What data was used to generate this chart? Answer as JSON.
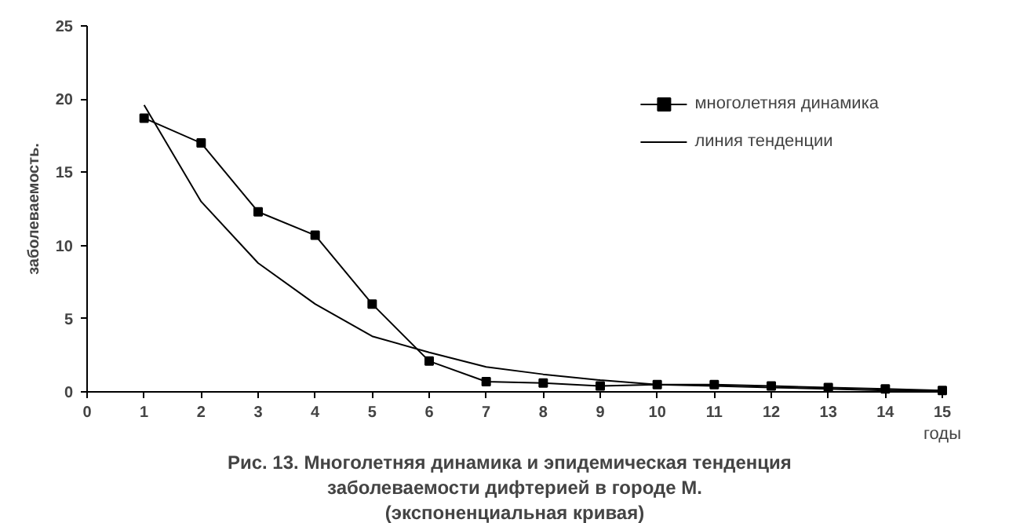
{
  "chart_data": {
    "type": "line",
    "title": "Рис. 13.  Многолетняя динамика и  эпидемическая тенденция\nзаболеваемости дифтерией в городе М.\n(экспоненциальная кривая)",
    "xlabel": "годы",
    "ylabel": "заболеваемость.",
    "x": [
      1,
      2,
      3,
      4,
      5,
      6,
      7,
      8,
      9,
      10,
      11,
      12,
      13,
      14,
      15
    ],
    "series": [
      {
        "name": "многолетняя динамика",
        "color": "#000000",
        "marker": "square",
        "values": [
          18.7,
          17.0,
          12.3,
          10.7,
          6.0,
          2.1,
          0.7,
          0.6,
          0.4,
          0.5,
          0.5,
          0.4,
          0.3,
          0.2,
          0.1
        ]
      },
      {
        "name": "линия тенденции",
        "color": "#000000",
        "marker": "none",
        "values": [
          19.6,
          13.0,
          8.8,
          6.0,
          3.8,
          2.7,
          1.7,
          1.2,
          0.8,
          0.5,
          0.4,
          0.3,
          0.2,
          0.1,
          0.1
        ]
      }
    ],
    "xlim": [
      0,
      15
    ],
    "xticks": [
      0,
      1,
      2,
      3,
      4,
      5,
      6,
      7,
      8,
      9,
      10,
      11,
      12,
      13,
      14,
      15
    ],
    "ylim": [
      0,
      25
    ],
    "yticks": [
      0,
      5,
      10,
      15,
      20,
      25
    ],
    "grid": false,
    "legend": "top right",
    "line_style": "solid"
  }
}
